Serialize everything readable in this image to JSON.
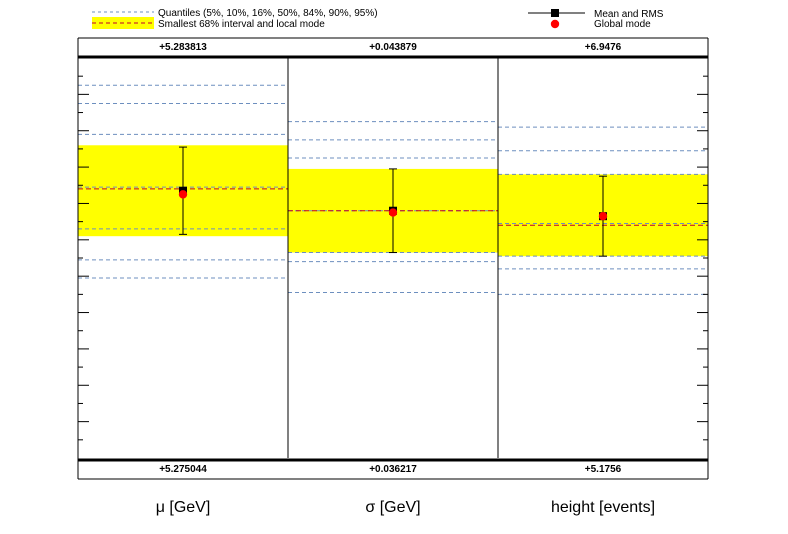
{
  "legend": {
    "quantiles_label": "Quantiles (5%, 10%, 16%, 50%, 84%, 90%, 95%)",
    "interval_label": "Smallest 68% interval and local mode",
    "mean_label": "Mean and RMS",
    "global_label": "Global mode"
  },
  "chart_data": {
    "type": "summary-plot",
    "y_normalized_range": [
      -6,
      16
    ],
    "categories": [
      {
        "label": "μ [GeV]",
        "max_label": "+5.283813",
        "min_label": "+5.275044",
        "quantiles": [
          3.9,
          4.9,
          6.6,
          8.9,
          11.8,
          13.5,
          14.5
        ],
        "interval": [
          6.2,
          11.2
        ],
        "local_mode": 8.8,
        "mean": 8.7,
        "rms": 2.4,
        "global_mode": 8.5
      },
      {
        "label": "σ [GeV]",
        "max_label": "+0.043879",
        "min_label": "+0.036217",
        "quantiles": [
          3.1,
          4.8,
          5.3,
          7.6,
          10.5,
          11.5,
          12.5
        ],
        "interval": [
          5.3,
          9.9
        ],
        "local_mode": 7.6,
        "mean": 7.6,
        "rms": 2.3,
        "global_mode": 7.5
      },
      {
        "label": "height [events]",
        "max_label": "+6.9476",
        "min_label": "+5.1756",
        "quantiles": [
          3.0,
          4.4,
          5.1,
          6.9,
          9.6,
          10.9,
          12.2
        ],
        "interval": [
          5.1,
          9.6
        ],
        "local_mode": 6.8,
        "mean": 7.3,
        "rms": 2.2,
        "global_mode": 7.3
      }
    ],
    "colors": {
      "interval": "#ffff00",
      "quantile": "#6d8fbf",
      "local_mode": "#c0002a",
      "mean": "#000000",
      "global_mode": "#ff0000"
    }
  }
}
